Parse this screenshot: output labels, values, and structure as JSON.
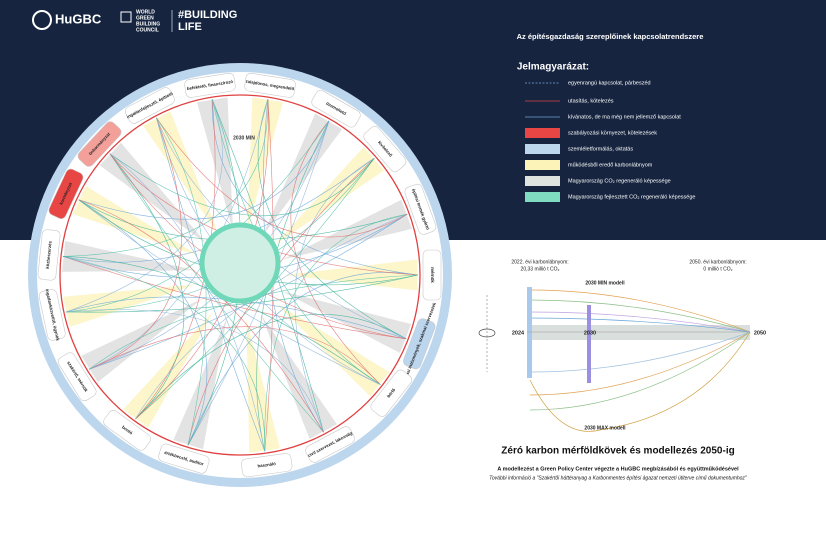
{
  "header": {
    "logo_hugbc": "HuGBC",
    "logo_wgbc": [
      "WORLD",
      "GREEN",
      "BUILDING",
      "COUNCIL"
    ],
    "logo_building_life": [
      "#BUILDING",
      "LIFE"
    ]
  },
  "title": "Az építésgazdaság szereplőinek kapcsolatrendszere",
  "legend": {
    "title": "Jelmagyarázat:",
    "items": [
      {
        "label": "egyenrangú kapcsolat, párbeszéd",
        "style": "dashed",
        "color": "#7fa7d9"
      },
      {
        "label": "utasítás, kötelezés",
        "style": "line",
        "color": "#d64545"
      },
      {
        "label": "kívánatos, de ma még nem jellemző kapcsolat",
        "style": "line",
        "color": "#6aa6d8"
      },
      {
        "label": "szabályozási környezet, kötelezések",
        "style": "box",
        "color": "#e84545"
      },
      {
        "label": "szemléletformálás, oktatás",
        "style": "box",
        "color": "#bcd6ee"
      },
      {
        "label": "működésből eredő karbonlábnyom",
        "style": "box",
        "color": "#fbf3b8"
      },
      {
        "label": "Magyarország CO₂ regeneráló képessége",
        "style": "box",
        "color": "#dfe3df"
      },
      {
        "label": "Magyarország fejlesztett CO₂ regeneráló képessége",
        "style": "box",
        "color": "#7fdcc0"
      }
    ]
  },
  "diagram": {
    "center_label": "2030 MIN",
    "actors": [
      {
        "label": "befektető, finanszírozó",
        "color": "#ffffff"
      },
      {
        "label": "tulajdonos, megrendelő",
        "color": "#ffffff"
      },
      {
        "label": "üzemeltető",
        "color": "#ffffff"
      },
      {
        "label": "kivitelező",
        "color": "#ffffff"
      },
      {
        "label": "építési termék gyártó",
        "color": "#ffffff"
      },
      {
        "label": "mérnök",
        "color": "#ffffff"
      },
      {
        "label": "oktatási intézmények, szakmai szervezetek",
        "color": "#bcd6ee"
      },
      {
        "label": "bérlő",
        "color": "#ffffff"
      },
      {
        "label": "civil szervezet, lakosság",
        "color": "#ffffff"
      },
      {
        "label": "használó",
        "color": "#ffffff"
      },
      {
        "label": "értékbecslő, auditor",
        "color": "#ffffff"
      },
      {
        "label": "bontó",
        "color": "#ffffff"
      },
      {
        "label": "szakértő, mérnök",
        "color": "#ffffff"
      },
      {
        "label": "ingatlanközvetítő, ügynök",
        "color": "#ffffff"
      },
      {
        "label": "közbeszerzés",
        "color": "#ffffff"
      },
      {
        "label": "kormányzat",
        "color": "#e84545"
      },
      {
        "label": "önkormányzat",
        "color": "#f4a09a"
      },
      {
        "label": "ingatlanfejlesztő, építtető",
        "color": "#ffffff"
      }
    ]
  },
  "model": {
    "start_note": [
      "2022. évi karbonlábnyom:",
      "20,33 millió t CO₂"
    ],
    "end_note": [
      "2050. évi karbonlábnyom:",
      "0 millió t CO₂"
    ],
    "min_label": "2030 MIN modell",
    "max_label": "2030 MAX modell",
    "years": [
      "2024",
      "2030",
      "2050"
    ]
  },
  "footer": {
    "heading": "Zéró karbon mérföldkövek és modellezés 2050-ig",
    "credit": "A modellezést a Green Policy Center végezte a HuGBC megbízásából és együttműködésével",
    "more_info": "További információ a \"Szakértői háttéranyag a Karbonmentes építési ágazat nemzeti útiterve című dokumentumhoz\""
  }
}
